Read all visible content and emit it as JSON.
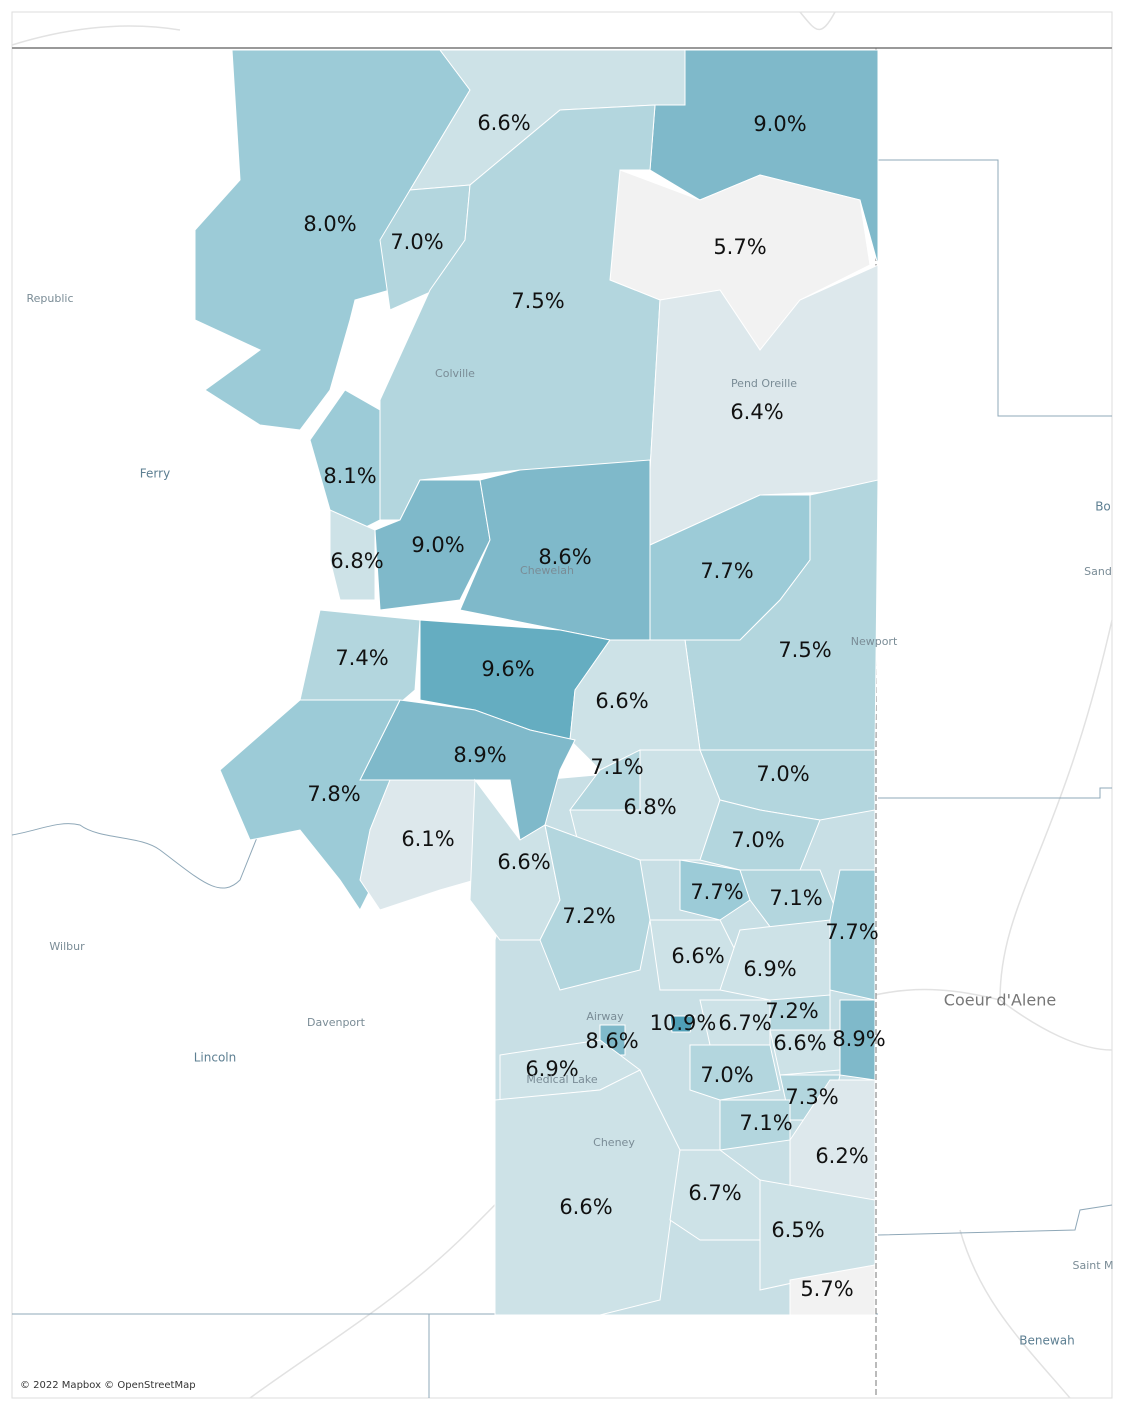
{
  "regions": [
    {
      "label": "8.0%"
    },
    {
      "label": "6.6%"
    },
    {
      "label": "9.0%"
    },
    {
      "label": "5.7%"
    },
    {
      "label": "7.0%"
    },
    {
      "label": "7.5%"
    },
    {
      "label": "6.4%"
    },
    {
      "label": "8.1%"
    },
    {
      "label": "9.0%"
    },
    {
      "label": "8.6%"
    },
    {
      "label": "6.8%"
    },
    {
      "label": "7.7%"
    },
    {
      "label": "7.5%"
    },
    {
      "label": "7.4%"
    },
    {
      "label": "9.6%"
    },
    {
      "label": "6.6%"
    },
    {
      "label": "8.9%"
    },
    {
      "label": "7.8%"
    },
    {
      "label": "7.1%"
    },
    {
      "label": "6.8%"
    },
    {
      "label": "7.0%"
    },
    {
      "label": "6.1%"
    },
    {
      "label": "6.6%"
    },
    {
      "label": "7.0%"
    },
    {
      "label": "7.2%"
    },
    {
      "label": "7.7%"
    },
    {
      "label": "7.1%"
    },
    {
      "label": "7.7%"
    },
    {
      "label": "6.6%"
    },
    {
      "label": "6.9%"
    },
    {
      "label": "10.9%"
    },
    {
      "label": "6.7%"
    },
    {
      "label": "7.2%"
    },
    {
      "label": "8.9%"
    },
    {
      "label": "6.6%"
    },
    {
      "label": "8.6%"
    },
    {
      "label": "6.9%"
    },
    {
      "label": "7.0%"
    },
    {
      "label": "7.3%"
    },
    {
      "label": "7.1%"
    },
    {
      "label": "6.2%"
    },
    {
      "label": "6.6%"
    },
    {
      "label": "6.7%"
    },
    {
      "label": "6.5%"
    },
    {
      "label": "5.7%"
    }
  ],
  "places": [
    "Republic",
    "Ferry",
    "Colville",
    "Pend Oreille",
    "Newport",
    "Chewelah",
    "Wilbur",
    "Davenport",
    "Lincoln",
    "Coeur d'Alene",
    "Benewah",
    "Saint M",
    "Bo",
    "Sand",
    "Cheney",
    "Airway",
    "Medical Lake"
  ],
  "attribution": "© 2022 Mapbox © OpenStreetMap"
}
